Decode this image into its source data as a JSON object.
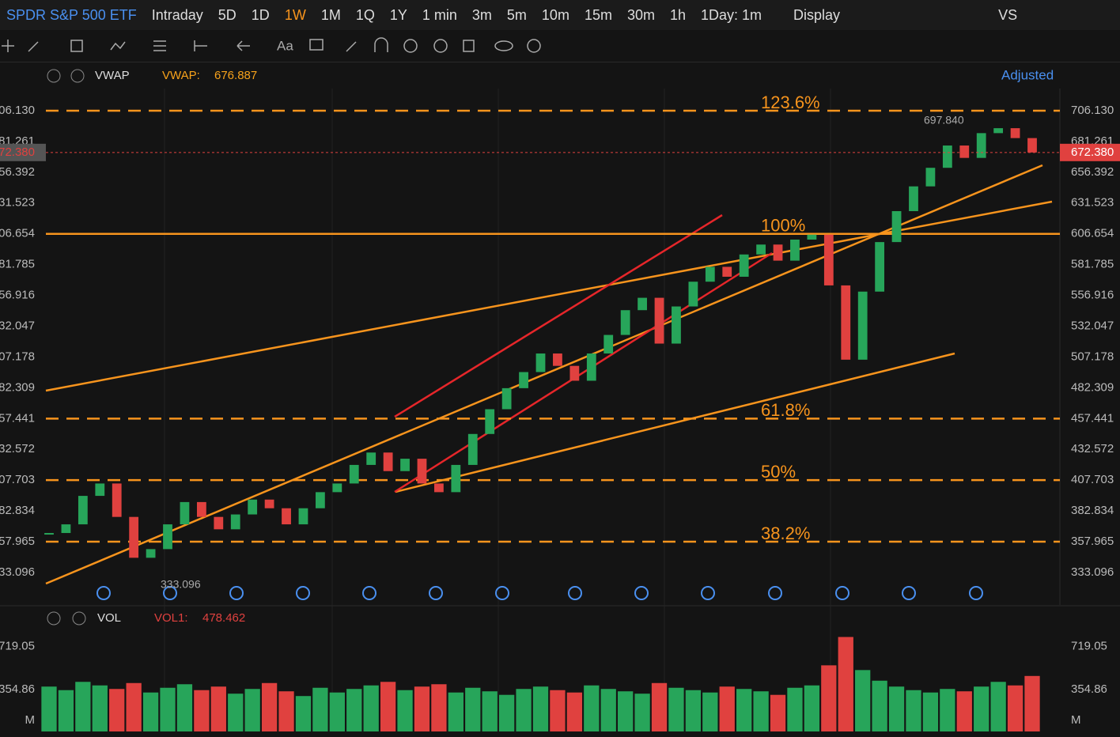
{
  "header": {
    "symbol": "SPDR S&P 500 ETF",
    "periods": [
      "Intraday",
      "5D",
      "1D",
      "1W",
      "1M",
      "1Q",
      "1Y",
      "1 min",
      "3m",
      "5m",
      "10m",
      "15m",
      "30m",
      "1h",
      "1Day: 1m"
    ],
    "active_period": "1W",
    "display": "Display",
    "compare": "VS"
  },
  "indicator_bar": {
    "name": "VWAP",
    "label": "VWAP:",
    "value": "676.887",
    "adjust": "Adjusted"
  },
  "chart_data": {
    "type": "candlestick",
    "closes": [
      365,
      372,
      395,
      405,
      378,
      345,
      352,
      372,
      390,
      378,
      368,
      380,
      392,
      385,
      372,
      385,
      398,
      405,
      420,
      430,
      415,
      425,
      405,
      398,
      420,
      445,
      465,
      482,
      495,
      510,
      500,
      488,
      510,
      525,
      545,
      555,
      518,
      548,
      568,
      580,
      572,
      590,
      598,
      585,
      602,
      606,
      565,
      505,
      560,
      600,
      625,
      645,
      660,
      678,
      668,
      688,
      692,
      684,
      672.38
    ],
    "ylim": [
      306.9,
      724.0
    ],
    "yticks": [
      {
        "value": 706.13,
        "label": "706.130"
      },
      681.261,
      656.392,
      631.523,
      606.654,
      581.785,
      556.916,
      532.047,
      507.178,
      482.309,
      457.441,
      432.572,
      407.703,
      382.834,
      357.965,
      333.096
    ],
    "last_price": {
      "value": 672.38,
      "label": "672.380"
    },
    "high_label": {
      "value": 697.84,
      "label": "697.840"
    },
    "low_label": 333.096,
    "fib_levels": [
      {
        "value": 706.13,
        "label": "123.6%"
      },
      {
        "value": 606.654,
        "label": "100%"
      },
      {
        "value": 457.441,
        "label": "61.8%"
      },
      {
        "value": 407.703,
        "label": "50%"
      },
      {
        "value": 357.965,
        "label": "38.2%"
      }
    ],
    "up_color": "#27a55a",
    "down_color": "#e0413f",
    "fib_color": "#f7941d"
  },
  "volume": {
    "type": "bar",
    "name": "VOL",
    "label": "VOL1:",
    "value": "478.462",
    "values": [
      380,
      350,
      420,
      390,
      360,
      410,
      330,
      370,
      400,
      350,
      380,
      320,
      360,
      410,
      340,
      300,
      370,
      330,
      360,
      390,
      420,
      350,
      380,
      400,
      330,
      370,
      340,
      310,
      360,
      380,
      350,
      330,
      390,
      360,
      340,
      320,
      410,
      370,
      350,
      330,
      380,
      360,
      340,
      310,
      370,
      390,
      560,
      800,
      520,
      430,
      380,
      350,
      330,
      360,
      340,
      380,
      420,
      390,
      470
    ],
    "ylim": [
      0,
      837
    ],
    "yticks": [
      354.86,
      719.05
    ],
    "unit": "M"
  }
}
